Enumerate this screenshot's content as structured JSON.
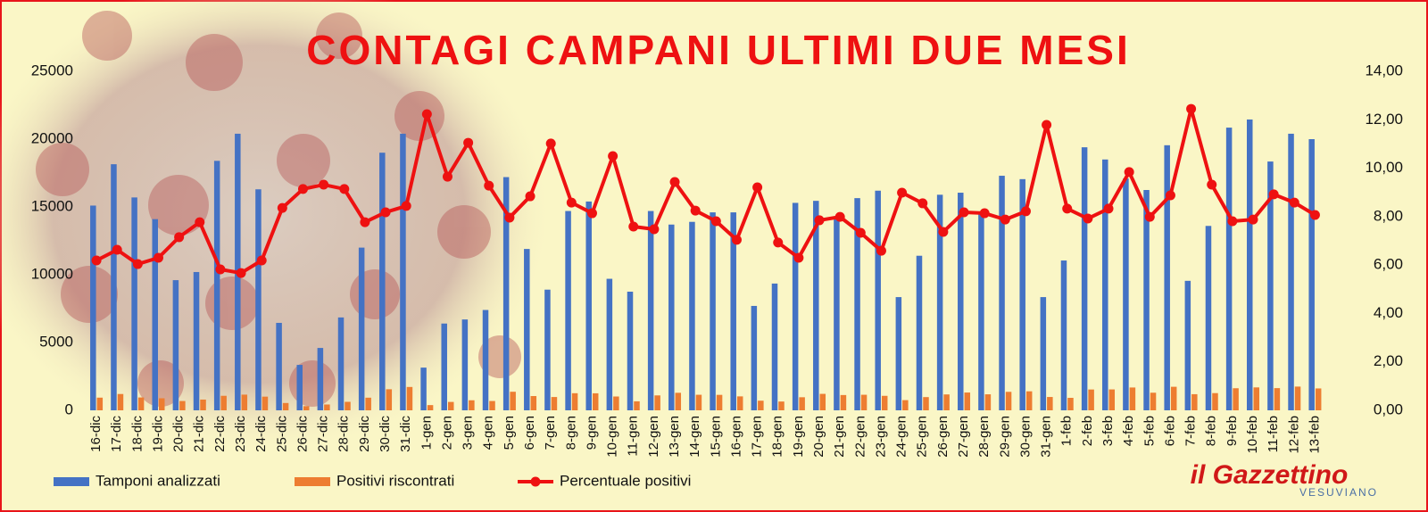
{
  "chart_data": {
    "type": "bar_line",
    "title": "CONTAGI CAMPANI ULTIMI DUE MESI",
    "categories": [
      "16-dic",
      "17-dic",
      "18-dic",
      "19-dic",
      "20-dic",
      "21-dic",
      "22-dic",
      "23-dic",
      "24-dic",
      "25-dic",
      "26-dic",
      "27-dic",
      "28-dic",
      "29-dic",
      "30-dic",
      "31-dic",
      "1-gen",
      "2-gen",
      "3-gen",
      "4-gen",
      "5-gen",
      "6-gen",
      "7-gen",
      "8-gen",
      "9-gen",
      "10-gen",
      "11-gen",
      "12-gen",
      "13-gen",
      "14-gen",
      "15-gen",
      "16-gen",
      "17-gen",
      "18-gen",
      "19-gen",
      "20-gen",
      "21-gen",
      "22-gen",
      "23-gen",
      "24-gen",
      "25-gen",
      "26-gen",
      "27-gen",
      "28-gen",
      "29-gen",
      "30-gen",
      "31-gen",
      "1-feb",
      "2-feb",
      "3-feb",
      "4-feb",
      "5-feb",
      "6-feb",
      "7-feb",
      "8-feb",
      "9-feb",
      "10-feb",
      "11-feb",
      "12-feb",
      "13-feb"
    ],
    "series": [
      {
        "name": "Tamponi analizzati",
        "color": "#4472c4",
        "kind": "bar",
        "values": [
          15100,
          18150,
          15700,
          14100,
          9600,
          10200,
          18400,
          20400,
          16300,
          6450,
          3350,
          4600,
          6850,
          12000,
          19000,
          20400,
          3150,
          6400,
          6700,
          7400,
          17200,
          11900,
          8900,
          14700,
          15400,
          9700,
          8750,
          14700,
          13700,
          13900,
          14600,
          14600,
          7700,
          9350,
          15300,
          15450,
          14100,
          15650,
          16200,
          8350,
          11400,
          15900,
          16050,
          14500,
          17300,
          17050,
          8350,
          11050,
          19400,
          18500,
          17100,
          16250,
          19550,
          9550,
          13600,
          20850,
          21450,
          18350,
          20400,
          20000
        ]
      },
      {
        "name": "Positivi riscontrati",
        "color": "#ed7d31",
        "kind": "bar",
        "values": [
          935,
          1203,
          948,
          888,
          686,
          793,
          1071,
          1157,
          1009,
          539,
          306,
          429,
          626,
          932,
          1554,
          1722,
          385,
          618,
          740,
          687,
          1369,
          1052,
          981,
          1261,
          1254,
          1019,
          664,
          1100,
          1292,
          1147,
          1140,
          1028,
          709,
          648,
          964,
          1213,
          1127,
          1147,
          1068,
          751,
          975,
          1172,
          1313,
          1180,
          1363,
          1402,
          984,
          920,
          1536,
          1541,
          1683,
          1298,
          1736,
          1189,
          1268,
          1628,
          1690,
          1637,
          1750,
          1614
        ]
      },
      {
        "name": "Percentuale positivi",
        "color": "#ee1111",
        "kind": "line",
        "axis": "y2",
        "values": [
          6.19,
          6.63,
          6.04,
          6.3,
          7.15,
          7.77,
          5.82,
          5.67,
          6.19,
          8.36,
          9.14,
          9.32,
          9.14,
          7.77,
          8.18,
          8.44,
          12.23,
          9.65,
          11.05,
          9.28,
          7.96,
          8.84,
          11.02,
          8.58,
          8.14,
          10.5,
          7.59,
          7.48,
          9.43,
          8.25,
          7.81,
          7.04,
          9.21,
          6.93,
          6.3,
          7.85,
          7.99,
          7.33,
          6.59,
          8.99,
          8.55,
          7.37,
          8.18,
          8.14,
          7.88,
          8.22,
          11.79,
          8.33,
          7.92,
          8.33,
          9.84,
          7.99,
          8.88,
          12.45,
          9.32,
          7.81,
          7.88,
          8.92,
          8.58,
          8.07
        ]
      }
    ],
    "ylim": [
      0,
      25000
    ],
    "yticks": [
      0,
      5000,
      10000,
      15000,
      20000,
      25000
    ],
    "y2lim": [
      0,
      14
    ],
    "y2ticks": [
      {
        "value": 0,
        "label": "0,00"
      },
      {
        "value": 2,
        "label": "2,00"
      },
      {
        "value": 4,
        "label": "4,00"
      },
      {
        "value": 6,
        "label": "6,00"
      },
      {
        "value": 8,
        "label": "8,00"
      },
      {
        "value": 10,
        "label": "10,00"
      },
      {
        "value": 12,
        "label": "12,00"
      },
      {
        "value": 14,
        "label": "14,00"
      }
    ],
    "grid": false,
    "legend": "bottom-left",
    "logo": "il Gazzettino",
    "logo_sub": "VESUVIANO"
  }
}
